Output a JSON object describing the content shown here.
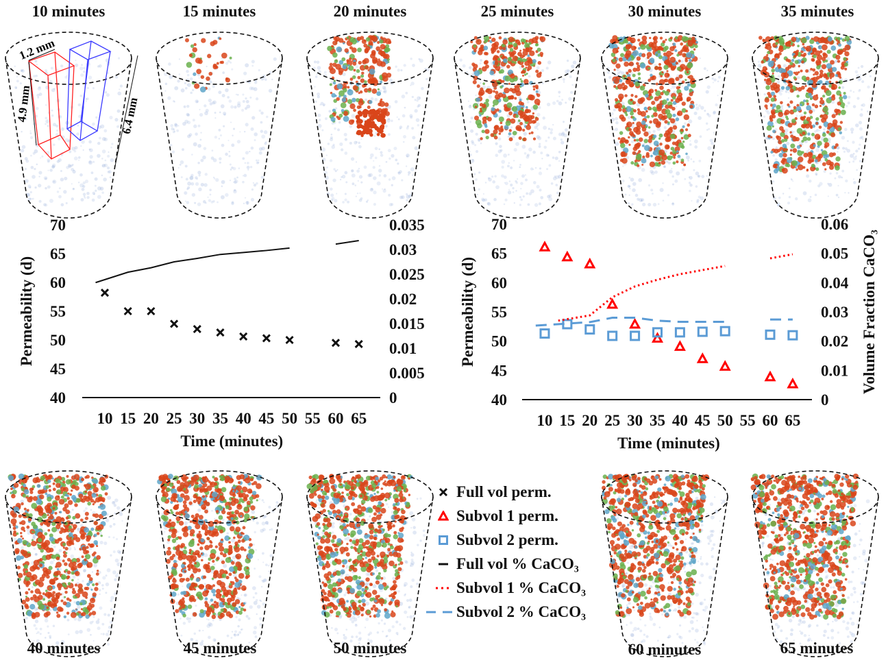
{
  "panels_top": [
    {
      "label": "10 minutes"
    },
    {
      "label": "15 minutes"
    },
    {
      "label": "20 minutes"
    },
    {
      "label": "25 minutes"
    },
    {
      "label": "30 minutes"
    },
    {
      "label": "35 minutes"
    }
  ],
  "panels_bottom": [
    {
      "label": "40 minutes"
    },
    {
      "label": "45 minutes"
    },
    {
      "label": "50 minutes"
    },
    {
      "label": "60 minutes"
    },
    {
      "label": "65 minutes"
    }
  ],
  "schematic": {
    "width_label": "1.2 mm",
    "subvol_height_label": "4.9 mm",
    "sample_height_label": "6.4 mm",
    "subvol1_color": "#ff2020",
    "subvol2_color": "#3a3aff"
  },
  "colors": {
    "full": "#111111",
    "subvol1": "#ff0000",
    "subvol2": "#5b9bd5",
    "precipitate": "#d9451a",
    "biofilm": "#6ab04c",
    "pore": "#8fa8d8"
  },
  "legend": [
    {
      "label": "Full vol perm.",
      "symbol": "x-marker"
    },
    {
      "label": "Subvol 1 perm.",
      "symbol": "triangle-marker"
    },
    {
      "label": "Subvol 2 perm.",
      "symbol": "square-marker"
    },
    {
      "label": "Full vol % CaCO₃",
      "symbol": "solid-line"
    },
    {
      "label": "Subvol 1 % CaCO₃",
      "symbol": "dotted-line"
    },
    {
      "label": "Subvol 2 % CaCO₃",
      "symbol": "dashed-line"
    }
  ],
  "chart_data": [
    {
      "type": "scatter+line",
      "categories": [
        10,
        15,
        20,
        25,
        30,
        35,
        40,
        45,
        50,
        55,
        60,
        65
      ],
      "xlabel": "Time (minutes)",
      "ylabel": "Permeability (d)",
      "ylim": [
        40,
        70
      ],
      "yticks": [
        40,
        45,
        50,
        55,
        60,
        65,
        70
      ],
      "y2label": "",
      "y2lim": [
        0,
        0.035
      ],
      "y2ticks": [
        "0",
        "0.005",
        "0.01",
        "0.015",
        "0.02",
        "0.025",
        "0.03",
        "0.035"
      ],
      "grid": false,
      "series": [
        {
          "name": "Full vol perm.",
          "axis": "left",
          "marker": "x",
          "values": [
            58.2,
            55.0,
            55.0,
            52.8,
            51.9,
            51.3,
            50.6,
            50.3,
            50.0,
            null,
            49.5,
            49.3
          ]
        },
        {
          "name": "Full vol % CaCO₃",
          "axis": "right",
          "line": "solid",
          "values": [
            0.0233,
            0.0254,
            0.0263,
            0.0275,
            0.0282,
            0.029,
            0.0294,
            0.0298,
            0.0303,
            null,
            0.0311,
            0.0318
          ]
        }
      ]
    },
    {
      "type": "scatter+line",
      "categories": [
        10,
        15,
        20,
        25,
        30,
        35,
        40,
        45,
        50,
        55,
        60,
        65
      ],
      "xlabel": "Time (minutes)",
      "ylabel": "Permeability (d)",
      "ylim": [
        40,
        70
      ],
      "yticks": [
        40,
        45,
        50,
        55,
        60,
        65,
        70
      ],
      "y2label": "Volume Fraction CaCO₃",
      "y2lim": [
        0,
        0.06
      ],
      "y2ticks": [
        "0",
        "0.01",
        "0.02",
        "0.03",
        "0.04",
        "0.05",
        "0.06"
      ],
      "grid": false,
      "series": [
        {
          "name": "Subvol 1 perm.",
          "axis": "left",
          "marker": "triangle",
          "values": [
            66.1,
            64.4,
            63.2,
            56.3,
            52.9,
            50.5,
            49.1,
            47.0,
            45.7,
            null,
            43.9,
            42.7
          ]
        },
        {
          "name": "Subvol 2 perm.",
          "axis": "left",
          "marker": "square",
          "values": [
            51.3,
            52.9,
            52.0,
            50.9,
            50.9,
            51.5,
            51.5,
            51.6,
            51.7,
            null,
            51.1,
            51.0
          ]
        },
        {
          "name": "Subvol 1 % CaCO₃",
          "axis": "right",
          "line": "dotted",
          "values": [
            null,
            0.027,
            0.0288,
            0.035,
            0.0387,
            0.041,
            0.0429,
            0.0443,
            0.0457,
            null,
            0.0483,
            0.0497
          ]
        },
        {
          "name": "Subvol 2 % CaCO₃",
          "axis": "right",
          "line": "dashed",
          "values": [
            0.0253,
            0.026,
            0.0265,
            0.028,
            0.028,
            0.027,
            0.0266,
            0.0266,
            0.0266,
            null,
            0.0274,
            0.0274
          ]
        }
      ]
    }
  ]
}
